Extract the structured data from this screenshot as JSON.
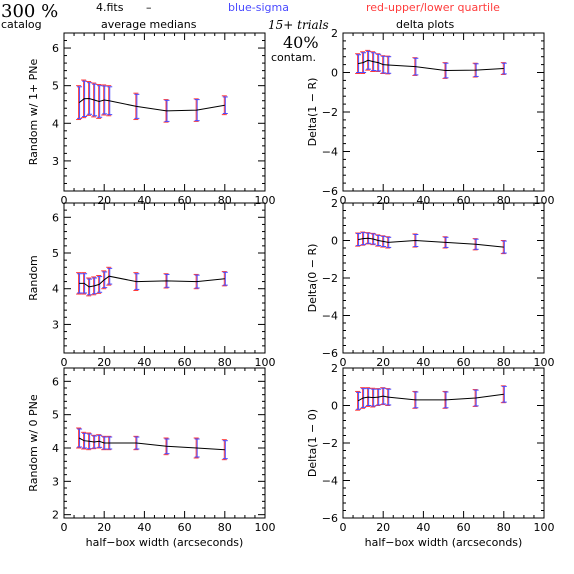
{
  "header": {
    "percent": "300 %",
    "catalog": "catalog",
    "fits": "4.fits",
    "dash": "–",
    "medians": "average medians",
    "sigma": "blue-sigma",
    "quartile": "red-upper/lower quartile",
    "trials": "15+ trials",
    "contam_pct": "40%",
    "contam": "contam.",
    "delta_title": "delta plots"
  },
  "colors": {
    "sigma": "#4a4aff",
    "quartile": "#ff3b3b",
    "line": "#000000"
  },
  "chart_data": [
    {
      "type": "line",
      "name": "left-top",
      "xlabel": "",
      "ylabel": "Random w/ 1+ PNe",
      "xlim": [
        0,
        100
      ],
      "ylim": [
        2.2,
        6.4
      ],
      "xticks": [
        0,
        20,
        40,
        60,
        80,
        100
      ],
      "yticks": [
        3,
        4,
        5,
        6
      ],
      "x": [
        7.5,
        10,
        12.5,
        15,
        17.5,
        20,
        22.5,
        36,
        51,
        66,
        80
      ],
      "y": [
        4.55,
        4.65,
        4.66,
        4.62,
        4.58,
        4.62,
        4.6,
        4.45,
        4.33,
        4.35,
        4.48
      ],
      "quartile_err": [
        0.45,
        0.5,
        0.45,
        0.45,
        0.45,
        0.4,
        0.4,
        0.35,
        0.3,
        0.3,
        0.25
      ],
      "sigma_err": [
        0.42,
        0.47,
        0.42,
        0.42,
        0.42,
        0.37,
        0.37,
        0.32,
        0.28,
        0.28,
        0.22
      ]
    },
    {
      "type": "line",
      "name": "right-top",
      "xlabel": "",
      "ylabel": "Delta(1 − R)",
      "xlim": [
        0,
        100
      ],
      "ylim": [
        -6,
        2
      ],
      "xticks": [
        0,
        20,
        40,
        60,
        80,
        100
      ],
      "yticks": [
        -6,
        -4,
        -2,
        0,
        2
      ],
      "x": [
        7.5,
        10,
        12.5,
        15,
        17.5,
        20,
        22.5,
        36,
        51,
        66,
        80
      ],
      "y": [
        0.45,
        0.5,
        0.62,
        0.55,
        0.5,
        0.4,
        0.38,
        0.3,
        0.1,
        0.12,
        0.2
      ],
      "quartile_err": [
        0.5,
        0.55,
        0.5,
        0.5,
        0.45,
        0.45,
        0.45,
        0.45,
        0.4,
        0.35,
        0.3
      ],
      "sigma_err": [
        0.45,
        0.5,
        0.45,
        0.45,
        0.42,
        0.42,
        0.42,
        0.42,
        0.37,
        0.32,
        0.27
      ]
    },
    {
      "type": "line",
      "name": "left-middle",
      "xlabel": "",
      "ylabel": "Random",
      "xlim": [
        0,
        100
      ],
      "ylim": [
        2.2,
        6.4
      ],
      "xticks": [
        0,
        20,
        40,
        60,
        80,
        100
      ],
      "yticks": [
        3,
        4,
        5,
        6
      ],
      "x": [
        7.5,
        10,
        12.5,
        15,
        17.5,
        20,
        22.5,
        36,
        51,
        66,
        80
      ],
      "y": [
        4.15,
        4.15,
        4.05,
        4.08,
        4.12,
        4.25,
        4.35,
        4.2,
        4.22,
        4.2,
        4.28
      ],
      "quartile_err": [
        0.3,
        0.3,
        0.25,
        0.25,
        0.25,
        0.25,
        0.25,
        0.25,
        0.2,
        0.2,
        0.2
      ],
      "sigma_err": [
        0.27,
        0.27,
        0.22,
        0.22,
        0.22,
        0.22,
        0.22,
        0.22,
        0.18,
        0.18,
        0.18
      ]
    },
    {
      "type": "line",
      "name": "right-middle",
      "xlabel": "",
      "ylabel": "Delta(0 − R)",
      "xlim": [
        0,
        100
      ],
      "ylim": [
        -6,
        2
      ],
      "xticks": [
        0,
        20,
        40,
        60,
        80,
        100
      ],
      "yticks": [
        -6,
        -4,
        -2,
        0,
        2
      ],
      "x": [
        7.5,
        10,
        12.5,
        15,
        17.5,
        20,
        22.5,
        36,
        51,
        66,
        80
      ],
      "y": [
        0.05,
        0.1,
        0.12,
        0.08,
        0.0,
        -0.05,
        -0.1,
        0.0,
        -0.1,
        -0.2,
        -0.35
      ],
      "quartile_err": [
        0.35,
        0.35,
        0.3,
        0.3,
        0.3,
        0.3,
        0.3,
        0.35,
        0.3,
        0.3,
        0.35
      ],
      "sigma_err": [
        0.32,
        0.32,
        0.27,
        0.27,
        0.27,
        0.27,
        0.27,
        0.32,
        0.27,
        0.27,
        0.32
      ]
    },
    {
      "type": "line",
      "name": "left-bottom",
      "xlabel": "half−box width (arcseconds)",
      "ylabel": "Random w/ 0 PNe",
      "xlim": [
        0,
        100
      ],
      "ylim": [
        1.9,
        6.4
      ],
      "xticks": [
        0,
        20,
        40,
        60,
        80,
        100
      ],
      "yticks": [
        2,
        3,
        4,
        5,
        6
      ],
      "x": [
        7.5,
        10,
        12.5,
        15,
        17.5,
        20,
        22.5,
        36,
        51,
        66,
        80
      ],
      "y": [
        4.3,
        4.22,
        4.2,
        4.18,
        4.2,
        4.15,
        4.15,
        4.15,
        4.05,
        4.0,
        3.95
      ],
      "quartile_err": [
        0.3,
        0.25,
        0.25,
        0.2,
        0.2,
        0.2,
        0.2,
        0.2,
        0.25,
        0.3,
        0.3
      ],
      "sigma_err": [
        0.27,
        0.22,
        0.22,
        0.18,
        0.18,
        0.18,
        0.18,
        0.18,
        0.22,
        0.27,
        0.27
      ]
    },
    {
      "type": "line",
      "name": "right-bottom",
      "xlabel": "half−box width (arcseconds)",
      "ylabel": "Delta(1 − 0)",
      "xlim": [
        0,
        100
      ],
      "ylim": [
        -6,
        2
      ],
      "xticks": [
        0,
        20,
        40,
        60,
        80,
        100
      ],
      "yticks": [
        -6,
        -4,
        -2,
        0,
        2
      ],
      "x": [
        7.5,
        10,
        12.5,
        15,
        17.5,
        20,
        22.5,
        36,
        51,
        66,
        80
      ],
      "y": [
        0.25,
        0.4,
        0.45,
        0.42,
        0.45,
        0.5,
        0.45,
        0.3,
        0.3,
        0.4,
        0.6
      ],
      "quartile_err": [
        0.5,
        0.55,
        0.5,
        0.5,
        0.45,
        0.45,
        0.45,
        0.45,
        0.45,
        0.45,
        0.45
      ],
      "sigma_err": [
        0.45,
        0.5,
        0.45,
        0.45,
        0.42,
        0.42,
        0.42,
        0.42,
        0.42,
        0.42,
        0.42
      ]
    }
  ]
}
